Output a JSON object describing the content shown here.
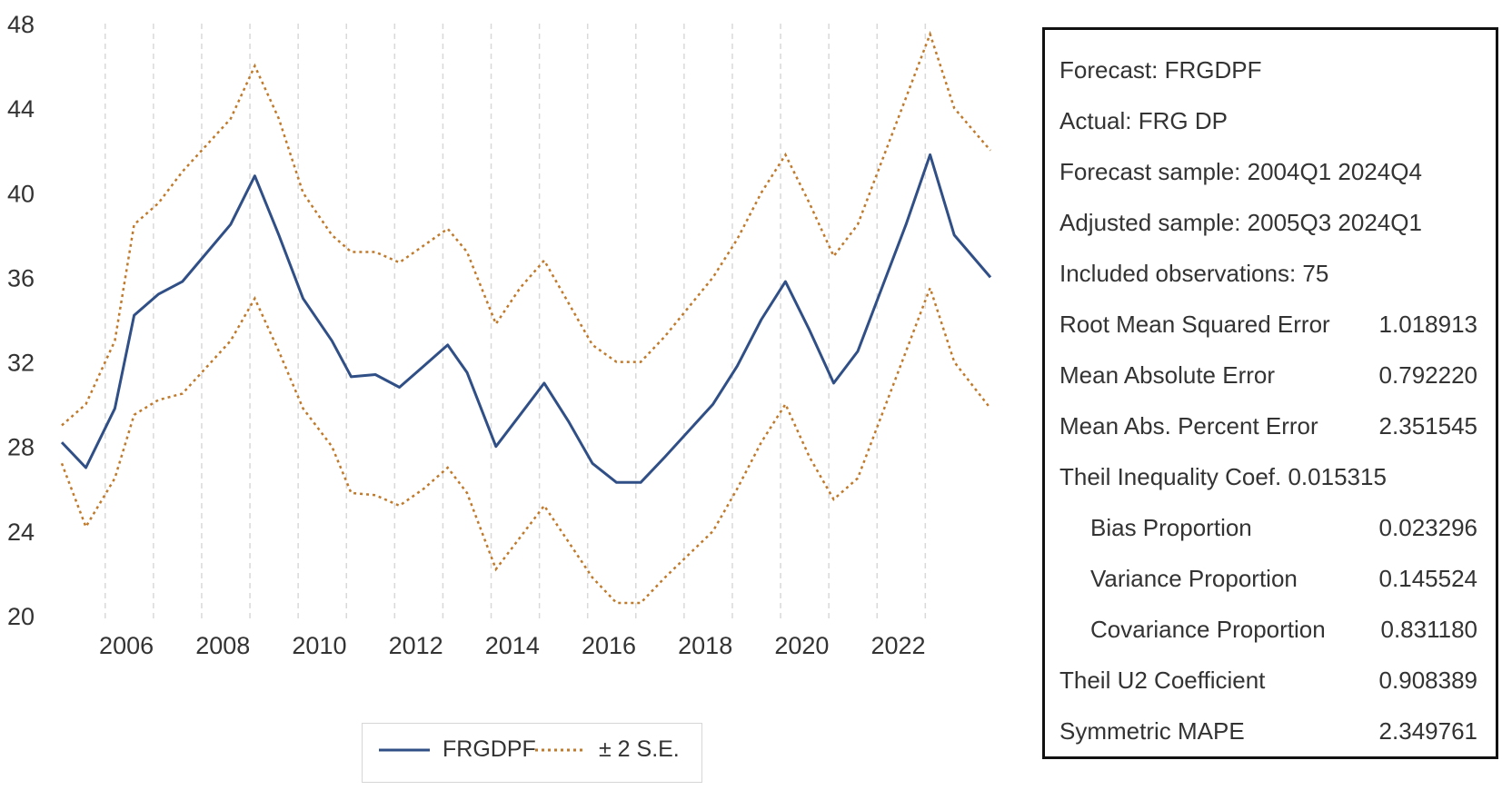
{
  "chart_data": {
    "type": "line",
    "title": "",
    "xlabel": "",
    "ylabel": "",
    "xlim": [
      2005.0,
      2024.25
    ],
    "ylim": [
      20,
      48
    ],
    "y_ticks": [
      20,
      24,
      28,
      32,
      36,
      40,
      44,
      48
    ],
    "x_ticks": [
      2006,
      2008,
      2010,
      2012,
      2014,
      2016,
      2018,
      2020,
      2022
    ],
    "grid": "vertical dashed",
    "legend_position": "bottom-center",
    "series": [
      {
        "name": "FRGDPF",
        "style": "solid",
        "color": "#2f4f86",
        "x": [
          2005.0,
          2005.5,
          2006.1,
          2006.5,
          2007.0,
          2007.5,
          2008.5,
          2009.0,
          2009.5,
          2010.0,
          2010.6,
          2011.0,
          2011.5,
          2012.0,
          2012.5,
          2013.0,
          2013.4,
          2014.0,
          2014.5,
          2015.0,
          2015.5,
          2016.0,
          2016.5,
          2017.0,
          2017.5,
          2018.5,
          2019.0,
          2019.5,
          2020.0,
          2020.5,
          2021.0,
          2021.5,
          2022.0,
          2022.5,
          2023.0,
          2023.5,
          2024.25
        ],
        "values": [
          28.2,
          27.0,
          29.8,
          34.2,
          35.2,
          35.8,
          38.5,
          40.8,
          38.0,
          35.0,
          33.0,
          31.3,
          31.4,
          30.8,
          31.8,
          32.8,
          31.5,
          28.0,
          29.5,
          31.0,
          29.2,
          27.2,
          26.3,
          26.3,
          27.5,
          30.0,
          31.8,
          34.0,
          35.8,
          33.5,
          31.0,
          32.5,
          35.5,
          38.5,
          41.8,
          38.0,
          36.0
        ]
      },
      {
        "name": "± 2 S.E.",
        "style": "dotted",
        "color": "#c07a2c",
        "x": [
          2005.0,
          2005.5,
          2006.1,
          2006.5,
          2007.0,
          2007.5,
          2008.5,
          2009.0,
          2009.5,
          2010.0,
          2010.6,
          2011.0,
          2011.5,
          2012.0,
          2012.5,
          2013.0,
          2013.4,
          2014.0,
          2014.5,
          2015.0,
          2015.5,
          2016.0,
          2016.5,
          2017.0,
          2017.5,
          2018.5,
          2019.0,
          2019.5,
          2020.0,
          2020.5,
          2021.0,
          2021.5,
          2022.0,
          2022.5,
          2023.0,
          2023.5,
          2024.25
        ],
        "upper": [
          29.0,
          30.0,
          33.0,
          38.5,
          39.5,
          41.0,
          43.5,
          46.0,
          43.5,
          40.0,
          38.0,
          37.2,
          37.2,
          36.7,
          37.5,
          38.3,
          37.2,
          33.8,
          35.5,
          36.8,
          34.8,
          32.8,
          32.0,
          32.0,
          33.2,
          36.0,
          37.8,
          40.0,
          41.8,
          39.5,
          37.0,
          38.5,
          41.5,
          44.5,
          47.5,
          44.0,
          42.0
        ],
        "lower": [
          27.2,
          24.2,
          26.5,
          29.5,
          30.2,
          30.5,
          33.0,
          35.0,
          32.5,
          29.8,
          28.0,
          25.8,
          25.7,
          25.2,
          26.0,
          27.0,
          25.8,
          22.2,
          23.7,
          25.2,
          23.5,
          21.8,
          20.6,
          20.6,
          21.8,
          24.0,
          26.0,
          28.2,
          30.0,
          27.5,
          25.5,
          26.5,
          29.5,
          32.5,
          35.5,
          32.0,
          29.8
        ]
      }
    ]
  },
  "stats": {
    "forecast": "Forecast: FRGDPF",
    "actual": "Actual: FRG DP",
    "forecast_sample": "Forecast sample: 2004Q1 2024Q4",
    "adjusted_sample": "Adjusted sample: 2005Q3 2024Q1",
    "included_obs": "Included observations: 75",
    "rows": [
      {
        "label": "Root Mean Squared Error",
        "value": "1.018913"
      },
      {
        "label": "Mean Absolute Error",
        "value": "0.792220"
      },
      {
        "label": "Mean Abs. Percent Error",
        "value": "2.351545"
      },
      {
        "label": "Theil Inequality Coef.  0.015315",
        "value": ""
      },
      {
        "label": "Bias Proportion",
        "value": "0.023296",
        "indent": true
      },
      {
        "label": "Variance Proportion",
        "value": "0.145524",
        "indent": true
      },
      {
        "label": "Covariance Proportion",
        "value": "0.831180",
        "indent": true
      },
      {
        "label": "Theil U2 Coefficient",
        "value": "0.908389"
      },
      {
        "label": "Symmetric MAPE",
        "value": "2.349761"
      }
    ]
  },
  "legend": {
    "item1": "FRGDPF",
    "item2": "± 2 S.E."
  },
  "colors": {
    "forecast_line": "#2f4f86",
    "se_band": "#c07a2c",
    "grid": "#d9d9d9"
  }
}
